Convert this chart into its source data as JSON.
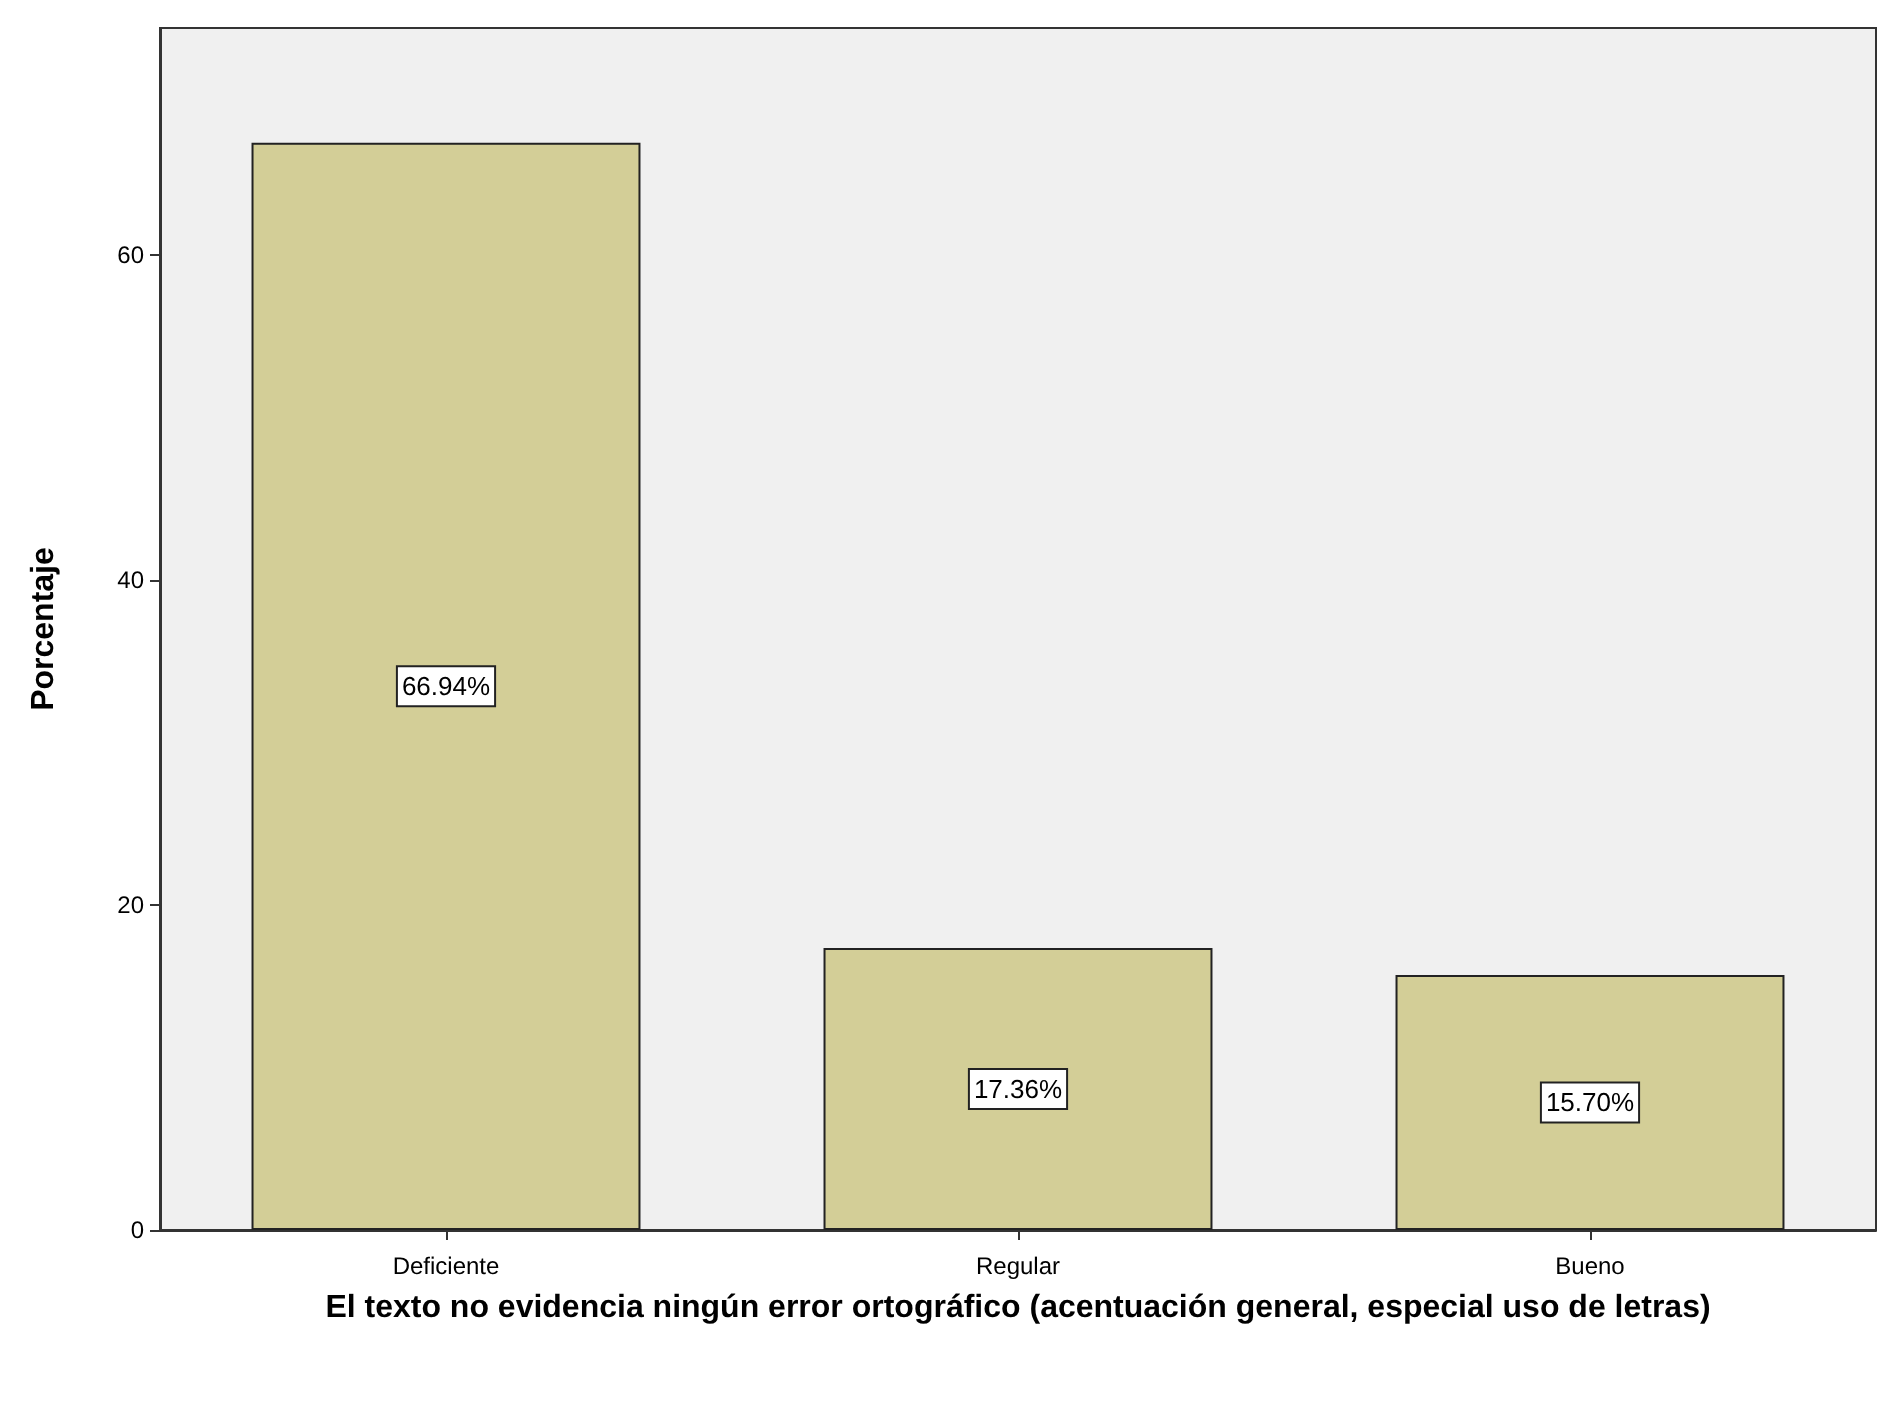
{
  "chart_data": {
    "type": "bar",
    "ylabel": "Porcentaje",
    "xlabel": "El texto no evidencia ningún error ortográfico (acentuación general, especial uso de letras)",
    "categories": [
      "Deficiente",
      "Regular",
      "Bueno"
    ],
    "values": [
      66.94,
      17.36,
      15.7
    ],
    "value_labels": [
      "66.94%",
      "17.36%",
      "15.70%"
    ],
    "color": "#d3ce97",
    "ylim": [
      0,
      74
    ],
    "yticks": [
      0,
      20,
      40,
      60
    ],
    "grid": false
  }
}
